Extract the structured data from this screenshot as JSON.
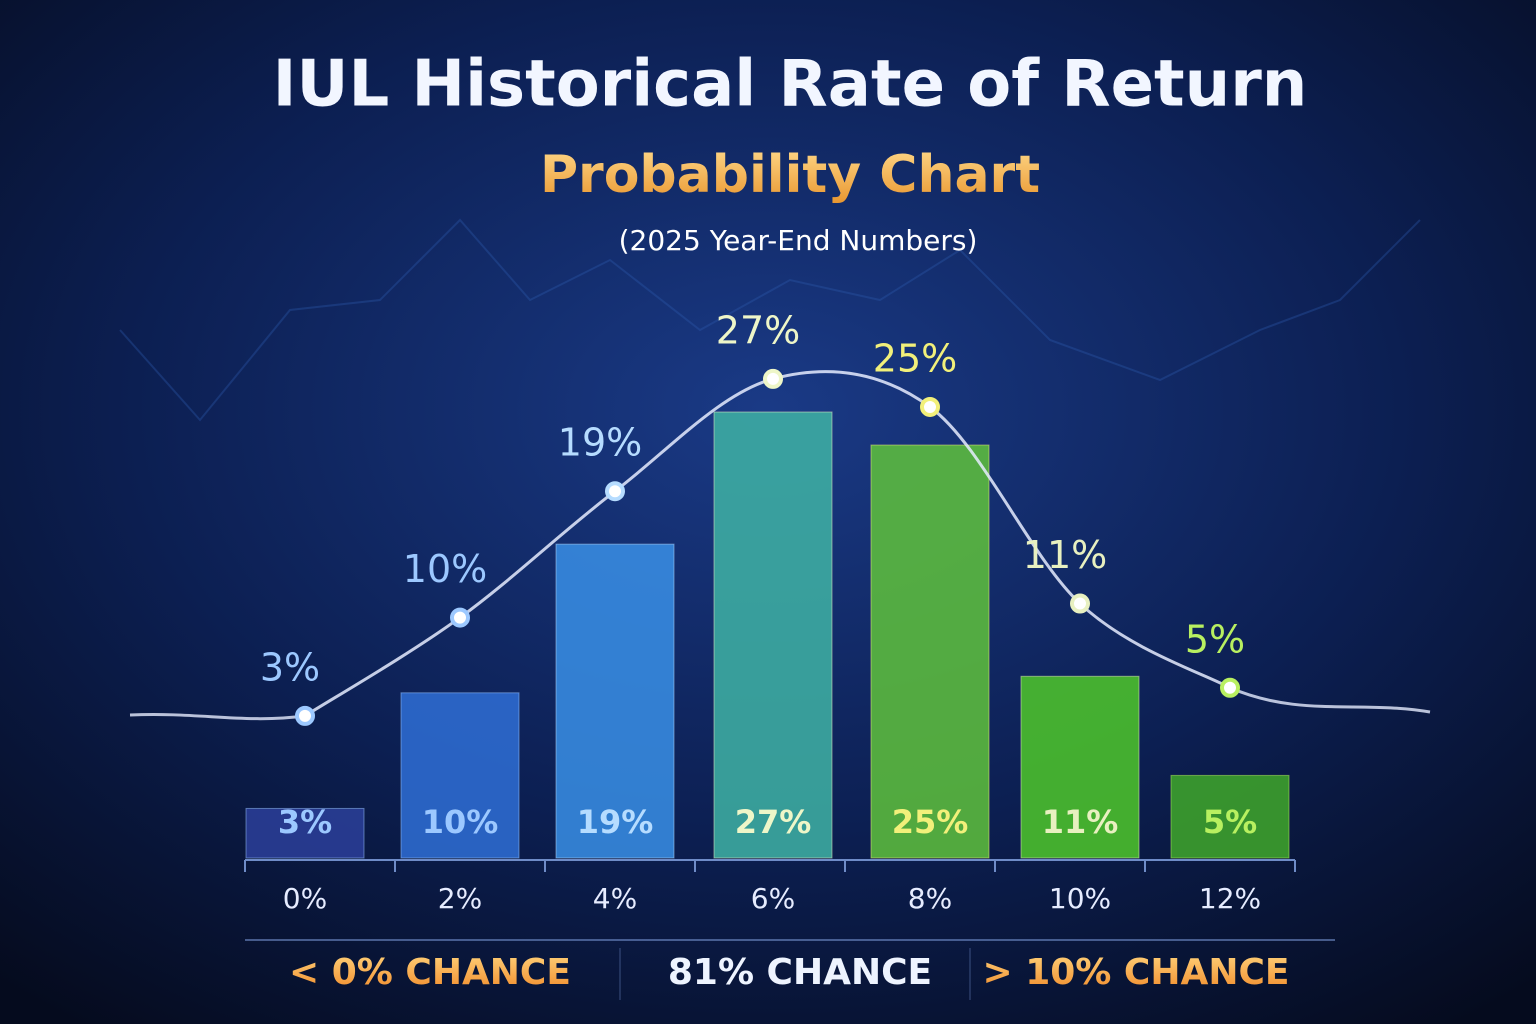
{
  "chart_data": {
    "type": "bar",
    "title": "IUL Historical Rate of Return",
    "subtitle": "Probability Chart",
    "note": "(2025 Year-End Numbers)",
    "categories": [
      "0%",
      "2%",
      "4%",
      "6%",
      "8%",
      "10%",
      "12%"
    ],
    "values": [
      3,
      10,
      19,
      27,
      25,
      11,
      5
    ],
    "value_labels": [
      "3%",
      "10%",
      "19%",
      "27%",
      "25%",
      "11%",
      "5%"
    ],
    "colors": [
      "#2b3f9a",
      "#2f6fd6",
      "#3a8fe6",
      "#3fb3a4",
      "#5fc23c",
      "#4fc82a",
      "#3fa82a"
    ],
    "label_colors": [
      "#9cc8ff",
      "#9cc8ff",
      "#b6dcff",
      "#eef6c8",
      "#f2f07a",
      "#e8f0c0",
      "#b8f060"
    ],
    "annotations": [
      "< 0% CHANCE",
      "81% CHANCE",
      "> 10% CHANCE"
    ]
  }
}
